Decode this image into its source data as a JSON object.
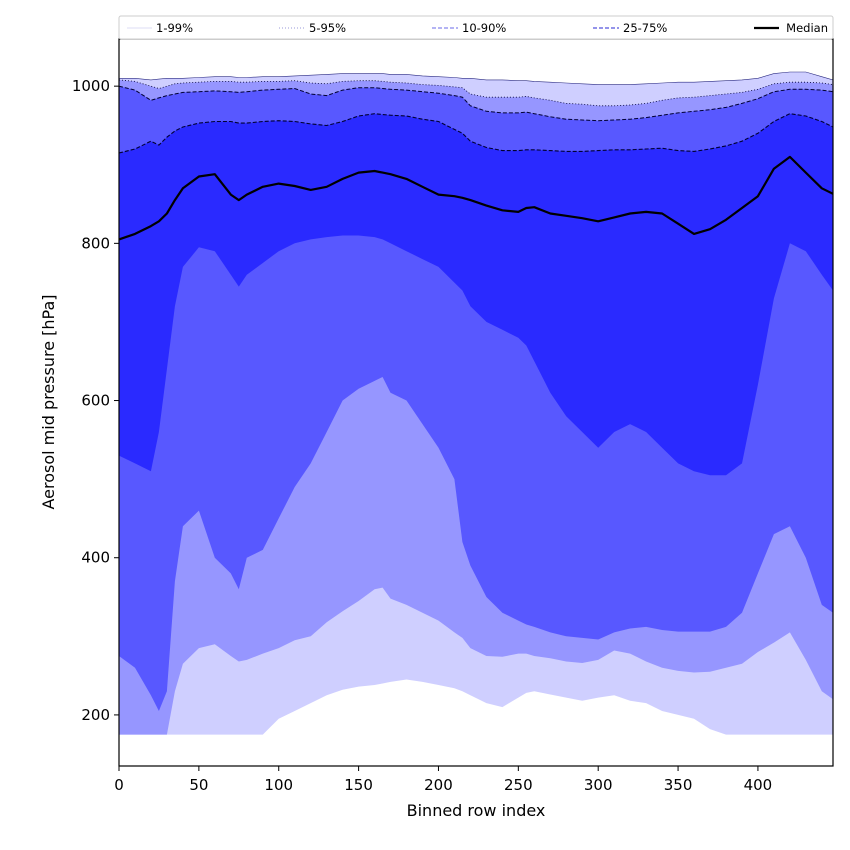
{
  "chart_data": {
    "type": "area",
    "title": "",
    "xlabel": "Binned row index",
    "ylabel": "Aerosol mid pressure [hPa]",
    "xlim": [
      0,
      447
    ],
    "ylim": [
      135,
      1060
    ],
    "xticks": [
      0,
      50,
      100,
      150,
      200,
      250,
      300,
      350,
      400
    ],
    "yticks": [
      200,
      400,
      600,
      800,
      1000
    ],
    "grid": false,
    "legend": {
      "placement": "top",
      "entries": [
        {
          "label": "1-99%",
          "style": "solid-thin",
          "color": "#ddddf4"
        },
        {
          "label": "5-95%",
          "style": "dotted",
          "color": "#9a9ad8"
        },
        {
          "label": "10-90%",
          "style": "dashed",
          "color": "#8888ee"
        },
        {
          "label": "25-75%",
          "style": "dashed",
          "color": "#5555dd"
        },
        {
          "label": "Median",
          "style": "solid-thick",
          "color": "#000000"
        }
      ]
    },
    "x": [
      0,
      10,
      20,
      25,
      30,
      35,
      40,
      50,
      60,
      70,
      75,
      80,
      90,
      100,
      110,
      120,
      130,
      140,
      150,
      160,
      165,
      170,
      180,
      190,
      200,
      210,
      215,
      220,
      230,
      240,
      250,
      255,
      260,
      270,
      280,
      290,
      300,
      310,
      320,
      330,
      340,
      350,
      360,
      370,
      380,
      390,
      400,
      410,
      420,
      430,
      440,
      447
    ],
    "bands": [
      {
        "name": "1-99%",
        "color": "#cfcfff",
        "lower": [
          175,
          175,
          175,
          175,
          175,
          175,
          175,
          175,
          175,
          175,
          175,
          175,
          175,
          195,
          205,
          215,
          225,
          232,
          236,
          238,
          240,
          242,
          245,
          242,
          238,
          234,
          230,
          225,
          215,
          210,
          222,
          228,
          230,
          226,
          222,
          218,
          222,
          225,
          218,
          215,
          205,
          200,
          195,
          182,
          175,
          175,
          175,
          175,
          175,
          175,
          175,
          175
        ],
        "upper": [
          1010,
          1010,
          1008,
          1009,
          1010,
          1010,
          1010,
          1011,
          1012,
          1012,
          1011,
          1011,
          1012,
          1012,
          1013,
          1014,
          1015,
          1016,
          1016,
          1016,
          1016,
          1015,
          1015,
          1013,
          1012,
          1011,
          1010,
          1010,
          1008,
          1008,
          1007,
          1007,
          1006,
          1005,
          1004,
          1003,
          1002,
          1002,
          1002,
          1003,
          1004,
          1005,
          1005,
          1006,
          1007,
          1008,
          1010,
          1016,
          1018,
          1018,
          1012,
          1008
        ]
      },
      {
        "name": "5-95%",
        "color": "#9696ff",
        "lower": [
          175,
          175,
          175,
          175,
          175,
          230,
          265,
          285,
          290,
          275,
          268,
          270,
          278,
          285,
          295,
          300,
          318,
          332,
          345,
          360,
          362,
          348,
          340,
          330,
          320,
          305,
          298,
          285,
          275,
          274,
          278,
          278,
          275,
          272,
          268,
          266,
          270,
          282,
          278,
          268,
          260,
          256,
          254,
          255,
          260,
          265,
          280,
          292,
          305,
          270,
          230,
          220
        ],
        "upper": [
          1008,
          1006,
          1000,
          997,
          1000,
          1003,
          1004,
          1005,
          1006,
          1006,
          1005,
          1005,
          1006,
          1006,
          1007,
          1004,
          1003,
          1006,
          1007,
          1007,
          1006,
          1005,
          1004,
          1002,
          1001,
          999,
          998,
          990,
          986,
          986,
          986,
          987,
          985,
          982,
          978,
          977,
          975,
          975,
          976,
          978,
          982,
          985,
          986,
          988,
          990,
          992,
          996,
          1003,
          1005,
          1005,
          1004,
          1002
        ]
      },
      {
        "name": "10-90%",
        "color": "#5858ff",
        "lower": [
          275,
          260,
          225,
          205,
          230,
          370,
          440,
          460,
          400,
          380,
          360,
          400,
          410,
          450,
          490,
          520,
          560,
          600,
          615,
          625,
          630,
          610,
          600,
          570,
          540,
          500,
          420,
          390,
          350,
          330,
          320,
          315,
          312,
          305,
          300,
          298,
          296,
          305,
          310,
          312,
          308,
          306,
          306,
          306,
          312,
          330,
          380,
          430,
          440,
          400,
          340,
          330
        ],
        "upper": [
          1000,
          995,
          982,
          985,
          988,
          990,
          992,
          993,
          994,
          993,
          992,
          993,
          995,
          996,
          997,
          990,
          988,
          995,
          998,
          998,
          997,
          996,
          995,
          993,
          991,
          988,
          986,
          975,
          968,
          966,
          966,
          967,
          965,
          961,
          958,
          957,
          956,
          957,
          958,
          960,
          963,
          966,
          968,
          970,
          973,
          978,
          984,
          993,
          996,
          996,
          995,
          993
        ]
      },
      {
        "name": "25-75%",
        "color": "#2a2aff",
        "lower": [
          530,
          520,
          510,
          560,
          640,
          720,
          770,
          795,
          790,
          760,
          745,
          760,
          775,
          790,
          800,
          805,
          808,
          810,
          810,
          808,
          805,
          800,
          790,
          780,
          770,
          750,
          740,
          720,
          700,
          690,
          680,
          670,
          650,
          610,
          580,
          560,
          540,
          560,
          570,
          560,
          540,
          520,
          510,
          505,
          505,
          520,
          620,
          730,
          800,
          790,
          760,
          740
        ],
        "upper": [
          915,
          920,
          930,
          925,
          935,
          943,
          948,
          953,
          955,
          955,
          953,
          953,
          955,
          956,
          955,
          952,
          950,
          955,
          962,
          965,
          964,
          963,
          962,
          958,
          955,
          945,
          940,
          930,
          922,
          918,
          918,
          919,
          919,
          918,
          917,
          917,
          918,
          919,
          919,
          920,
          921,
          918,
          917,
          920,
          924,
          930,
          940,
          955,
          965,
          962,
          955,
          948
        ]
      }
    ],
    "median": [
      805,
      812,
      822,
      828,
      838,
      855,
      870,
      885,
      888,
      862,
      855,
      862,
      872,
      876,
      873,
      868,
      872,
      882,
      890,
      892,
      890,
      888,
      882,
      872,
      862,
      860,
      858,
      855,
      848,
      842,
      840,
      845,
      846,
      838,
      835,
      832,
      828,
      833,
      838,
      840,
      838,
      825,
      812,
      818,
      830,
      845,
      860,
      895,
      910,
      890,
      870,
      863
    ]
  }
}
